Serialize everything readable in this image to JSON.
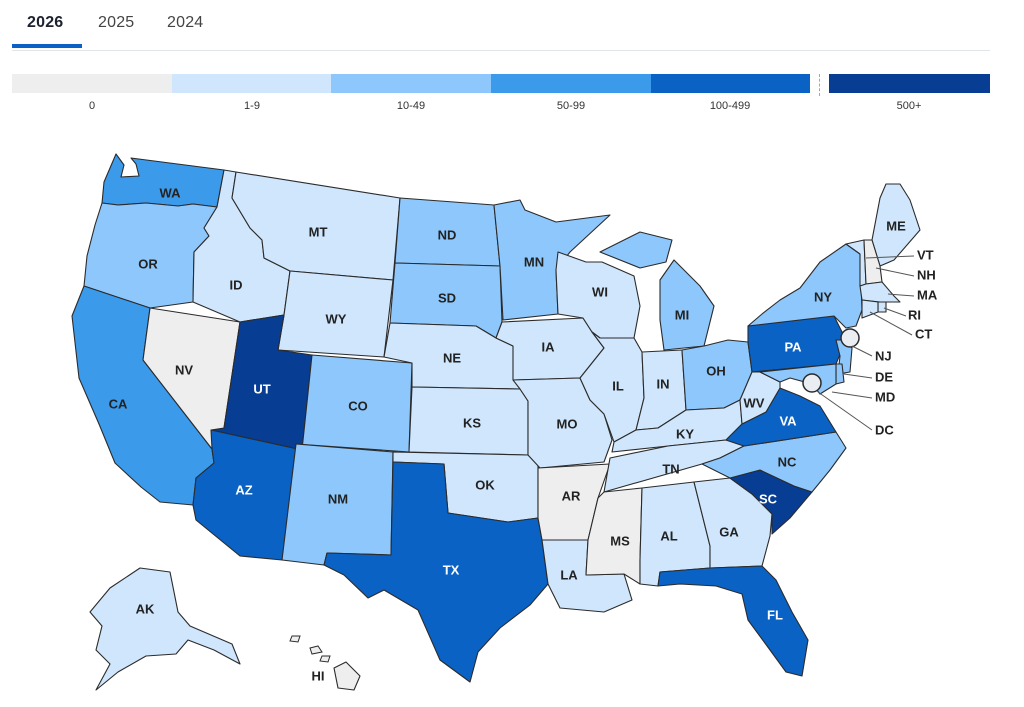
{
  "tabs": [
    {
      "label": "2026",
      "active": true
    },
    {
      "label": "2025",
      "active": false
    },
    {
      "label": "2024",
      "active": false
    }
  ],
  "legend": [
    {
      "label": "0",
      "color": "#eeeeee"
    },
    {
      "label": "1-9",
      "color": "#cfe6fc"
    },
    {
      "label": "10-49",
      "color": "#8ec7fb"
    },
    {
      "label": "50-99",
      "color": "#3c9aeb"
    },
    {
      "label": "100-499",
      "color": "#0a62c4"
    },
    {
      "label": "500+",
      "color": "#073d93"
    }
  ],
  "states": [
    {
      "code": "WA",
      "bucket": 3
    },
    {
      "code": "OR",
      "bucket": 2
    },
    {
      "code": "CA",
      "bucket": 3
    },
    {
      "code": "NV",
      "bucket": 0
    },
    {
      "code": "ID",
      "bucket": 1
    },
    {
      "code": "MT",
      "bucket": 1
    },
    {
      "code": "WY",
      "bucket": 1
    },
    {
      "code": "UT",
      "bucket": 5
    },
    {
      "code": "AZ",
      "bucket": 4
    },
    {
      "code": "CO",
      "bucket": 2
    },
    {
      "code": "NM",
      "bucket": 2
    },
    {
      "code": "ND",
      "bucket": 2
    },
    {
      "code": "SD",
      "bucket": 2
    },
    {
      "code": "NE",
      "bucket": 1
    },
    {
      "code": "KS",
      "bucket": 1
    },
    {
      "code": "OK",
      "bucket": 1
    },
    {
      "code": "TX",
      "bucket": 4
    },
    {
      "code": "MN",
      "bucket": 2
    },
    {
      "code": "IA",
      "bucket": 1
    },
    {
      "code": "MO",
      "bucket": 1
    },
    {
      "code": "AR",
      "bucket": 0
    },
    {
      "code": "LA",
      "bucket": 1
    },
    {
      "code": "WI",
      "bucket": 1
    },
    {
      "code": "IL",
      "bucket": 1
    },
    {
      "code": "MI",
      "bucket": 2
    },
    {
      "code": "IN",
      "bucket": 1
    },
    {
      "code": "OH",
      "bucket": 2
    },
    {
      "code": "KY",
      "bucket": 1
    },
    {
      "code": "TN",
      "bucket": 1
    },
    {
      "code": "MS",
      "bucket": 0
    },
    {
      "code": "AL",
      "bucket": 1
    },
    {
      "code": "GA",
      "bucket": 1
    },
    {
      "code": "FL",
      "bucket": 4
    },
    {
      "code": "SC",
      "bucket": 5
    },
    {
      "code": "NC",
      "bucket": 2
    },
    {
      "code": "VA",
      "bucket": 4
    },
    {
      "code": "WV",
      "bucket": 1
    },
    {
      "code": "PA",
      "bucket": 4
    },
    {
      "code": "NY",
      "bucket": 2
    },
    {
      "code": "ME",
      "bucket": 1
    },
    {
      "code": "VT",
      "bucket": 1
    },
    {
      "code": "NH",
      "bucket": 0
    },
    {
      "code": "MA",
      "bucket": 1
    },
    {
      "code": "RI",
      "bucket": 1
    },
    {
      "code": "CT",
      "bucket": 1
    },
    {
      "code": "NJ",
      "bucket": 2
    },
    {
      "code": "DE",
      "bucket": 2
    },
    {
      "code": "MD",
      "bucket": 2
    },
    {
      "code": "DC",
      "bucket": 1
    },
    {
      "code": "AK",
      "bucket": 1
    },
    {
      "code": "HI",
      "bucket": 0
    }
  ]
}
